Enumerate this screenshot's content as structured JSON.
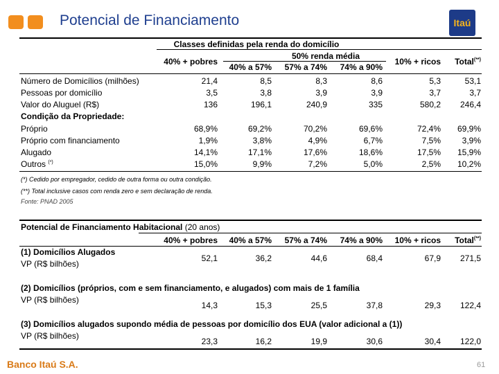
{
  "header": {
    "title": "Potencial de Financiamento",
    "logo_text": "Itaú"
  },
  "table1": {
    "title": "Classes definidas pela renda do domicílio",
    "group_header": "50% renda média",
    "columns": [
      "40% + pobres",
      "40% a 57%",
      "57% a 74%",
      "74% a 90%",
      "10% + ricos",
      "Total"
    ],
    "total_mark": "(**)",
    "rows": [
      {
        "label": "Número de Domicílios (milhões)",
        "values": [
          "21,4",
          "8,5",
          "8,3",
          "8,6",
          "5,3",
          "53,1"
        ]
      },
      {
        "label": "Pessoas por domicílio",
        "values": [
          "3,5",
          "3,8",
          "3,9",
          "3,9",
          "3,7",
          "3,7"
        ]
      },
      {
        "label": "Valor do Aluguel (R$)",
        "values": [
          "136",
          "196,1",
          "240,9",
          "335",
          "580,2",
          "246,4"
        ]
      }
    ],
    "section_label": "Condição da Propriedade:",
    "rows2": [
      {
        "label": "Próprio",
        "values": [
          "68,9%",
          "69,2%",
          "70,2%",
          "69,6%",
          "72,4%",
          "69,9%"
        ]
      },
      {
        "label": "Próprio com financiamento",
        "values": [
          "1,9%",
          "3,8%",
          "4,9%",
          "6,7%",
          "7,5%",
          "3,9%"
        ]
      },
      {
        "label": "Alugado",
        "values": [
          "14,1%",
          "17,1%",
          "17,6%",
          "18,6%",
          "17,5%",
          "15,9%"
        ]
      },
      {
        "label": "Outros",
        "mark": "(*)",
        "values": [
          "15,0%",
          "9,9%",
          "7,2%",
          "5,0%",
          "2,5%",
          "10,2%"
        ]
      }
    ],
    "notes": [
      "(*) Cedido por empregador, cedido de outra forma ou outra condição.",
      "(**) Total inclusive casos com renda zero e sem declaração de renda."
    ],
    "source": "Fonte: PNAD 2005"
  },
  "table2": {
    "title": "Potencial de Financiamento Habitacional",
    "title_suffix": "(20 anos)",
    "columns": [
      "40% + pobres",
      "40% a 57%",
      "57% a 74%",
      "74% a 90%",
      "10% + ricos",
      "Total"
    ],
    "total_mark": "(**)",
    "groups": [
      {
        "title": "(1) Domicílios Alugados",
        "sub": "VP (R$ bilhões)",
        "values": [
          "52,1",
          "36,2",
          "44,6",
          "68,4",
          "67,9",
          "271,5"
        ]
      },
      {
        "title": "(2) Domicílios (próprios, com e sem financiamento, e alugados) com mais de 1 família",
        "sub": "VP (R$ bilhões)",
        "values": [
          "14,3",
          "15,3",
          "25,5",
          "37,8",
          "29,3",
          "122,4"
        ]
      },
      {
        "title": "(3) Domicílios alugados supondo média de pessoas por domicílio dos EUA (valor adicional a (1))",
        "sub": "VP (R$ bilhões)",
        "values": [
          "23,3",
          "16,2",
          "19,9",
          "30,6",
          "30,4",
          "122,0"
        ]
      }
    ]
  },
  "footer": {
    "bank": "Banco Itaú S.A.",
    "page_number": "61"
  },
  "colors": {
    "title": "#1f3f8f",
    "accent_orange": "#f28e1e",
    "logo_bg": "#1d3b88",
    "logo_text": "#f7b51c"
  }
}
